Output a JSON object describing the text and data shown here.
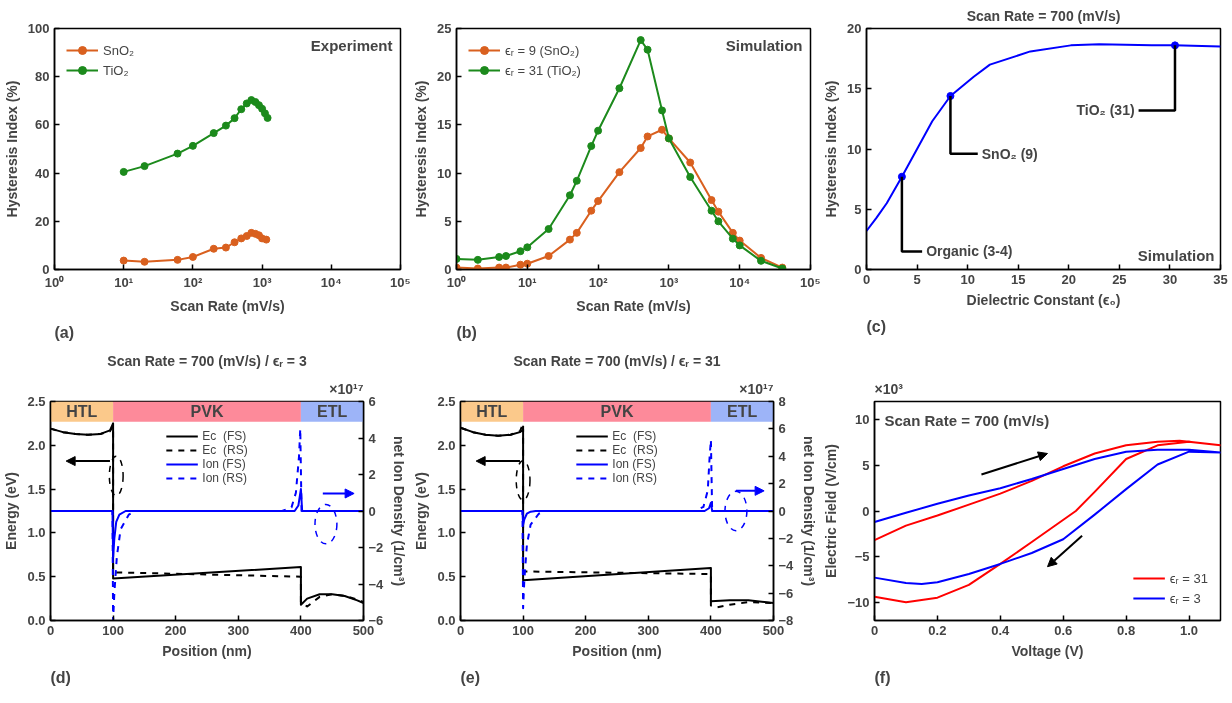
{
  "chart_data": [
    {
      "type": "line",
      "xlabel": "Scan Rate (mV/s)",
      "ylabel": "Hysteresis Index (%)",
      "log": "x",
      "xlim": [
        1,
        100000
      ],
      "xticks": [
        {
          "value": 1,
          "label": "10⁰"
        },
        {
          "value": 10,
          "label": "10¹"
        },
        {
          "value": 100,
          "label": "10²"
        },
        {
          "value": 1000,
          "label": "10³"
        },
        {
          "value": 10000,
          "label": "10⁴"
        },
        {
          "value": 100000,
          "label": "10⁵"
        }
      ],
      "ylim": [
        0,
        100
      ],
      "yticks": [
        0,
        20,
        40,
        60,
        80,
        100
      ],
      "marker": "circle",
      "legend": "top left",
      "annotations": [
        "Experiment",
        "(a)"
      ],
      "series": [
        {
          "name": "SnO₂",
          "color": "#d9601f",
          "x": [
            10,
            20,
            60,
            100,
            200,
            300,
            400,
            500,
            600,
            700,
            800,
            900,
            1000,
            1150
          ],
          "values": [
            3.7,
            3.2,
            4.0,
            5.2,
            8.6,
            9.1,
            11.3,
            12.9,
            13.9,
            15.2,
            14.8,
            14.2,
            12.9,
            12.4
          ]
        },
        {
          "name": "TiO₂",
          "color": "#1c8a1c",
          "x": [
            10,
            20,
            60,
            100,
            200,
            300,
            400,
            500,
            600,
            700,
            800,
            900,
            1000,
            1100,
            1200
          ],
          "values": [
            40.5,
            42.9,
            48.1,
            51.3,
            56.6,
            59.7,
            62.8,
            66.5,
            68.9,
            70.3,
            69.5,
            68.2,
            66.7,
            64.8,
            62.9
          ]
        }
      ]
    },
    {
      "type": "line",
      "xlabel": "Scan Rate (mV/s)",
      "ylabel": "Hysteresis Index (%)",
      "log": "x",
      "xlim": [
        1,
        100000
      ],
      "xticks": [
        {
          "value": 1,
          "label": "10⁰"
        },
        {
          "value": 10,
          "label": "10¹"
        },
        {
          "value": 100,
          "label": "10²"
        },
        {
          "value": 1000,
          "label": "10³"
        },
        {
          "value": 10000,
          "label": "10⁴"
        },
        {
          "value": 100000,
          "label": "10⁵"
        }
      ],
      "ylim": [
        0,
        25
      ],
      "yticks": [
        0,
        5,
        10,
        15,
        20,
        25
      ],
      "marker": "circle",
      "legend": "top left",
      "annotations": [
        "Simulation",
        "(b)"
      ],
      "series": [
        {
          "name": "ϵᵣ = 9 (SnO₂)",
          "color": "#d9601f",
          "x": [
            1,
            2,
            4,
            5,
            8,
            10,
            20,
            40,
            50,
            80,
            100,
            200,
            400,
            500,
            800,
            1000,
            2000,
            4000,
            5000,
            8000,
            10000,
            20000,
            40000
          ],
          "values": [
            0.2,
            0.1,
            0.2,
            0.2,
            0.5,
            0.6,
            1.4,
            3.1,
            3.8,
            6.1,
            7.1,
            10.1,
            12.6,
            13.8,
            14.5,
            13.6,
            11.1,
            7.2,
            6.0,
            3.8,
            3.0,
            1.2,
            0.2
          ]
        },
        {
          "name": "ϵᵣ = 31 (TiO₂)",
          "color": "#1c8a1c",
          "x": [
            1,
            2,
            4,
            5,
            8,
            10,
            20,
            40,
            50,
            80,
            100,
            200,
            400,
            500,
            800,
            1000,
            2000,
            4000,
            5000,
            8000,
            10000,
            20000,
            40000
          ],
          "values": [
            1.1,
            1.0,
            1.3,
            1.4,
            1.9,
            2.3,
            4.2,
            7.7,
            9.2,
            12.8,
            14.4,
            18.8,
            23.8,
            22.8,
            16.5,
            13.6,
            9.6,
            6.1,
            5.0,
            3.2,
            2.5,
            0.9,
            0.1
          ]
        }
      ]
    },
    {
      "type": "line",
      "title": "Scan Rate = 700 (mV/s)",
      "xlabel": "Dielectric Constant (ϵ₀)",
      "ylabel": "Hysteresis Index (%)",
      "xlim": [
        0,
        35
      ],
      "xticks": [
        0,
        5,
        10,
        15,
        20,
        25,
        30,
        35
      ],
      "ylim": [
        0,
        20
      ],
      "yticks": [
        0,
        5,
        10,
        15,
        20
      ],
      "annotations": [
        {
          "text": "Organic (3-4)",
          "x": 3.5,
          "y": 7.7
        },
        {
          "text": "SnO₂ (9)",
          "x": 8.3,
          "y": 14.4
        },
        {
          "text": "TiO₂ (31)",
          "x": 30.5,
          "y": 18.6
        },
        "Simulation",
        "(c)"
      ],
      "series": [
        {
          "type": "line",
          "color": "#0000ff",
          "x": [
            0,
            1,
            2,
            3.5,
            5,
            6.5,
            8.3,
            10.6,
            12.2,
            16.2,
            20.2,
            23,
            28.2,
            30.4,
            35
          ],
          "values": [
            3.2,
            4.3,
            5.5,
            7.7,
            10.0,
            12.3,
            14.4,
            16.0,
            17.0,
            18.1,
            18.6,
            18.7,
            18.6,
            18.6,
            18.5
          ]
        },
        {
          "type": "scatter",
          "marker": "circle",
          "color": "#0000ff",
          "x": [
            3.5,
            8.3,
            30.5
          ],
          "values": [
            7.7,
            14.4,
            18.6
          ]
        }
      ]
    },
    {
      "type": "line",
      "title": "Scan Rate = 700 (mV/s) / ϵᵣ = 3",
      "xlabel": "Position (nm)",
      "ylabel": "Energy (eV)",
      "y2label": "net Ion Density (1/cm³)",
      "xlim": [
        0,
        500
      ],
      "xticks": [
        0,
        100,
        200,
        300,
        400,
        500
      ],
      "ylim": [
        0,
        2.5
      ],
      "yticks": [
        {
          "value": 0,
          "label": "0.0"
        },
        0.5,
        {
          "value": 1,
          "label": "1.0"
        },
        1.5,
        {
          "value": 2,
          "label": "2.0"
        },
        2.5
      ],
      "y2lim": [
        -6,
        6
      ],
      "y2ticks": [
        -6,
        -4,
        -2,
        0,
        2,
        4,
        6
      ],
      "legend": "top",
      "annotations": [
        "×10¹⁷",
        "(d)"
      ],
      "bands": [
        {
          "axis": "x",
          "from": 0,
          "to": 100,
          "label": "HTL",
          "color": "#fbc98b"
        },
        {
          "axis": "x",
          "from": 100,
          "to": 400,
          "label": "PVK",
          "color": "#fd8a9a"
        },
        {
          "axis": "x",
          "from": 400,
          "to": 500,
          "label": "ETL",
          "color": "#9db4f8"
        }
      ],
      "series": [
        {
          "name": "Ec  (FS)",
          "color": "#000000",
          "line_style": "solid",
          "x": [
            0,
            20,
            40,
            60,
            80,
            95,
            100,
            100,
            400,
            400,
            410,
            430,
            450,
            470,
            490,
            500
          ],
          "values": [
            2.19,
            2.15,
            2.13,
            2.12,
            2.13,
            2.17,
            2.25,
            0.48,
            0.61,
            0.18,
            0.25,
            0.3,
            0.3,
            0.28,
            0.23,
            0.2
          ]
        },
        {
          "name": "Ec  (RS)",
          "color": "#000000",
          "line_style": "dashed",
          "x": [
            0,
            20,
            40,
            60,
            80,
            95,
            100,
            100,
            400,
            400,
            410,
            430,
            450,
            470,
            490,
            500
          ],
          "values": [
            2.19,
            2.15,
            2.13,
            2.12,
            2.13,
            2.16,
            2.22,
            0.55,
            0.5,
            0.21,
            0.16,
            0.27,
            0.3,
            0.28,
            0.24,
            0.21
          ]
        },
        {
          "name": "Ion (FS)",
          "color": "#0000ff",
          "line_style": "solid",
          "axis": "y2",
          "x": [
            0,
            99,
            100,
            102,
            105,
            110,
            120,
            390,
            396,
            400,
            402,
            500
          ],
          "values": [
            0,
            0,
            -2.5,
            -1.5,
            -0.6,
            -0.2,
            0,
            0,
            0.3,
            1.2,
            0,
            0
          ]
        },
        {
          "name": "Ion (RS)",
          "color": "#0000ff",
          "line_style": "dashed",
          "axis": "y2",
          "x": [
            0,
            99,
            100,
            102,
            106,
            112,
            125,
            135,
            370,
            385,
            392,
            397,
            399,
            401,
            500
          ],
          "values": [
            0,
            0,
            -6,
            -4.5,
            -2.5,
            -1,
            -0.2,
            0,
            0,
            0.2,
            1.0,
            3,
            4.5,
            0,
            0
          ]
        }
      ]
    },
    {
      "type": "line",
      "title": "Scan Rate = 700 (mV/s) / ϵᵣ = 31",
      "xlabel": "Position (nm)",
      "ylabel": "Energy (eV)",
      "y2label": "net Ion Density (1/cm³)",
      "xlim": [
        0,
        500
      ],
      "xticks": [
        0,
        100,
        200,
        300,
        400,
        500
      ],
      "ylim": [
        0,
        2.5
      ],
      "yticks": [
        {
          "value": 0,
          "label": "0.0"
        },
        0.5,
        {
          "value": 1,
          "label": "1.0"
        },
        1.5,
        {
          "value": 2,
          "label": "2.0"
        },
        2.5
      ],
      "y2lim": [
        -8,
        8
      ],
      "y2ticks": [
        -8,
        -6,
        -4,
        -2,
        0,
        2,
        4,
        6,
        8
      ],
      "legend": "top",
      "annotations": [
        "×10¹⁷",
        "(e)"
      ],
      "bands": [
        {
          "axis": "x",
          "from": 0,
          "to": 100,
          "label": "HTL",
          "color": "#fbc98b"
        },
        {
          "axis": "x",
          "from": 100,
          "to": 400,
          "label": "PVK",
          "color": "#fd8a9a"
        },
        {
          "axis": "x",
          "from": 400,
          "to": 500,
          "label": "ETL",
          "color": "#9db4f8"
        }
      ],
      "series": [
        {
          "name": "Ec  (FS)",
          "color": "#000000",
          "line_style": "solid",
          "x": [
            0,
            20,
            40,
            60,
            80,
            95,
            100,
            100,
            400,
            400,
            430,
            460,
            500
          ],
          "values": [
            2.2,
            2.15,
            2.12,
            2.11,
            2.12,
            2.15,
            2.18,
            0.46,
            0.6,
            0.22,
            0.23,
            0.23,
            0.2
          ]
        },
        {
          "name": "Ec  (RS)",
          "color": "#000000",
          "line_style": "dashed",
          "x": [
            0,
            20,
            40,
            60,
            80,
            95,
            100,
            100,
            400,
            400,
            410,
            430,
            460,
            500
          ],
          "values": [
            2.2,
            2.15,
            2.12,
            2.11,
            2.12,
            2.16,
            2.25,
            0.56,
            0.53,
            0.17,
            0.15,
            0.18,
            0.21,
            0.2
          ]
        },
        {
          "name": "Ion (FS)",
          "color": "#0000ff",
          "line_style": "solid",
          "axis": "y2",
          "x": [
            0,
            99,
            100,
            102,
            106,
            112,
            120,
            390,
            397,
            400,
            402,
            500
          ],
          "values": [
            0,
            0,
            -1.0,
            -0.6,
            -0.2,
            -0.05,
            0,
            0,
            0.2,
            0.6,
            0,
            0
          ]
        },
        {
          "name": "Ion (RS)",
          "color": "#0000ff",
          "line_style": "dashed",
          "axis": "y2",
          "x": [
            0,
            99,
            100,
            102,
            106,
            112,
            125,
            135,
            375,
            388,
            395,
            398,
            400,
            402,
            500
          ],
          "values": [
            0,
            0,
            -7.1,
            -5,
            -2.5,
            -1,
            -0.2,
            0,
            0,
            0.3,
            1.5,
            4,
            5.2,
            0,
            0
          ]
        }
      ]
    },
    {
      "type": "line",
      "xlabel": "Voltage (V)",
      "ylabel": "Electric Field (V/cm)",
      "xlim": [
        0,
        1.1
      ],
      "xticks": [
        0,
        0.2,
        0.4,
        0.6,
        0.8,
        {
          "value": 1,
          "label": "1.0"
        }
      ],
      "ylim": [
        -12,
        12
      ],
      "yticks": [
        -10,
        -5,
        0,
        5,
        10
      ],
      "legend": "bottom right",
      "annotations": [
        "×10³",
        "Scan Rate = 700 (mV/s)",
        "(f)"
      ],
      "series": [
        {
          "name": "ϵᵣ = 31",
          "color": "#ff0000",
          "x": [
            0,
            0.1,
            0.2,
            0.3,
            0.4,
            0.5,
            0.6,
            0.7,
            0.8,
            0.9,
            0.97,
            1.1,
            1.0,
            0.9,
            0.8,
            0.7,
            0.64,
            0.5,
            0.4,
            0.3,
            0.2,
            0.1,
            0
          ],
          "values": [
            -3.2,
            -1.6,
            -0.5,
            0.7,
            1.9,
            3.3,
            4.9,
            6.3,
            7.2,
            7.6,
            7.7,
            7.2,
            7.6,
            7.2,
            5.7,
            2.1,
            0,
            -3.4,
            -5.8,
            -8.1,
            -9.5,
            -10.0,
            -9.4
          ]
        },
        {
          "name": "ϵᵣ = 3",
          "color": "#0000ff",
          "x": [
            0,
            0.1,
            0.2,
            0.3,
            0.4,
            0.5,
            0.6,
            0.7,
            0.8,
            0.9,
            1.0,
            1.1,
            1.0,
            0.9,
            0.8,
            0.7,
            0.6,
            0.5,
            0.4,
            0.3,
            0.2,
            0.15,
            0.1,
            0
          ],
          "values": [
            -1.2,
            -0.2,
            0.8,
            1.7,
            2.5,
            3.5,
            4.6,
            5.7,
            6.5,
            6.7,
            6.7,
            6.4,
            6.5,
            5.1,
            2.4,
            -0.4,
            -3.1,
            -4.6,
            -5.8,
            -6.9,
            -7.8,
            -8.0,
            -7.9,
            -7.3
          ]
        }
      ]
    }
  ]
}
